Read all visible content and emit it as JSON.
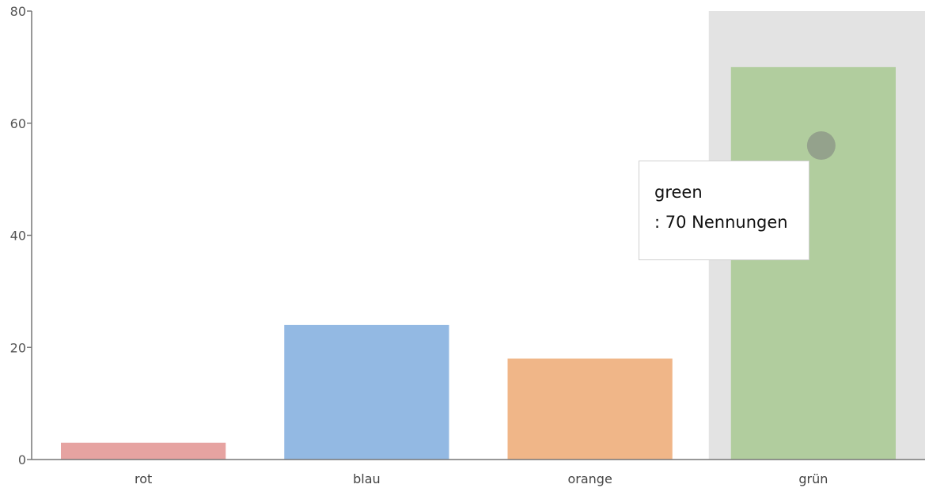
{
  "chart_data": {
    "type": "bar",
    "categories": [
      "rot",
      "blau",
      "orange",
      "grün"
    ],
    "values": [
      3,
      24,
      18,
      70
    ],
    "colors": [
      "#e6a3a1",
      "#93b9e3",
      "#f0b688",
      "#b1cd9e"
    ],
    "ylim": [
      0,
      80
    ],
    "yticks": [
      "0",
      "20",
      "40",
      "60",
      "80"
    ],
    "grid": false,
    "highlighted_category": "grün",
    "highlight_band_color": "#e3e3e3"
  },
  "tooltip": {
    "line1": "green",
    "line2": ": 70 Nennungen"
  }
}
